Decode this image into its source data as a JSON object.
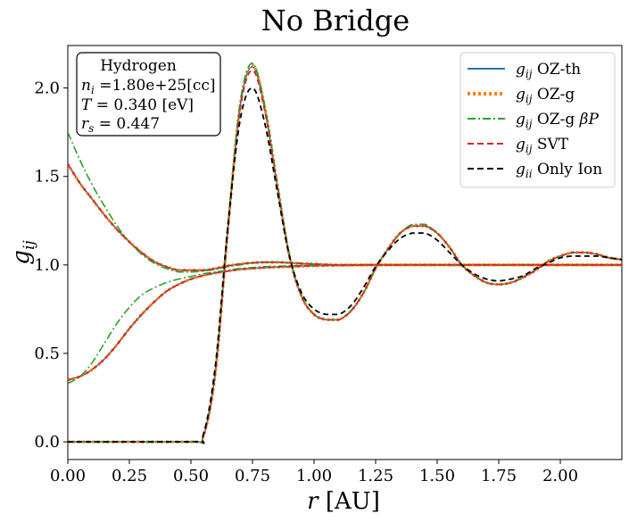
{
  "chart_data": {
    "type": "line",
    "title": "No Bridge",
    "xlabel": "r [AU]",
    "ylabel": "g_ij",
    "xlim": [
      0.0,
      2.25
    ],
    "ylim": [
      -0.1,
      2.24
    ],
    "xticks": [
      0.0,
      0.25,
      0.5,
      0.75,
      1.0,
      1.25,
      1.5,
      1.75,
      2.0
    ],
    "xtick_labels": [
      "0.00",
      "0.25",
      "0.50",
      "0.75",
      "1.00",
      "1.25",
      "1.50",
      "1.75",
      "2.00"
    ],
    "yticks": [
      0.0,
      0.5,
      1.0,
      1.5,
      2.0
    ],
    "ytick_labels": [
      "0.0",
      "0.5",
      "1.0",
      "1.5",
      "2.0"
    ],
    "legend_position": "top-right",
    "info_box": {
      "line1": "Hydrogen",
      "line2": "n_i =1.80e+25[cc]",
      "line3": "T = 0.340 [eV]",
      "line4": "r_s = 0.447"
    },
    "legend": [
      {
        "label": "g_ij OZ-th",
        "color": "#1f77b4",
        "dash": "solid"
      },
      {
        "label": "g_ij OZ-g",
        "color": "#ff7f0e",
        "dash": "dotted"
      },
      {
        "label": "g_ij OZ-g βP",
        "color": "#2ca02c",
        "dash": "dashdot"
      },
      {
        "label": "g_ij SVT",
        "color": "#d62728",
        "dash": "dashed"
      },
      {
        "label": "g_ii Only Ion",
        "color": "#000000",
        "dash": "dashed"
      }
    ],
    "series": [
      {
        "group": "ion-ion",
        "name": "g_ij OZ-th",
        "color": "#1f77b4",
        "dash": "solid",
        "x": [
          0.0,
          0.5,
          0.55,
          0.6,
          0.65,
          0.7,
          0.75,
          0.8,
          0.85,
          0.9,
          0.95,
          1.0,
          1.05,
          1.1,
          1.15,
          1.2,
          1.25,
          1.3,
          1.35,
          1.4,
          1.45,
          1.5,
          1.55,
          1.6,
          1.65,
          1.7,
          1.75,
          1.8,
          1.85,
          1.9,
          1.95,
          2.0,
          2.05,
          2.1,
          2.15,
          2.2,
          2.25
        ],
        "y": [
          0.0,
          0.0,
          0.03,
          0.4,
          1.2,
          1.9,
          2.12,
          1.88,
          1.45,
          1.05,
          0.82,
          0.72,
          0.69,
          0.69,
          0.74,
          0.84,
          0.98,
          1.09,
          1.18,
          1.22,
          1.22,
          1.18,
          1.1,
          1.0,
          0.94,
          0.9,
          0.89,
          0.9,
          0.93,
          0.97,
          1.02,
          1.05,
          1.07,
          1.07,
          1.06,
          1.04,
          1.03
        ]
      },
      {
        "group": "ion-ion",
        "name": "g_ij OZ-g",
        "color": "#ff7f0e",
        "dash": "dotted",
        "x": [
          0.0,
          0.5,
          0.55,
          0.6,
          0.65,
          0.7,
          0.75,
          0.8,
          0.85,
          0.9,
          0.95,
          1.0,
          1.05,
          1.1,
          1.15,
          1.2,
          1.25,
          1.3,
          1.35,
          1.4,
          1.45,
          1.5,
          1.55,
          1.6,
          1.65,
          1.7,
          1.75,
          1.8,
          1.85,
          1.9,
          1.95,
          2.0,
          2.05,
          2.1,
          2.15,
          2.2,
          2.25
        ],
        "y": [
          0.0,
          0.0,
          0.03,
          0.4,
          1.2,
          1.9,
          2.13,
          1.89,
          1.46,
          1.05,
          0.82,
          0.72,
          0.69,
          0.69,
          0.74,
          0.84,
          0.98,
          1.09,
          1.18,
          1.22,
          1.22,
          1.18,
          1.1,
          1.0,
          0.94,
          0.9,
          0.89,
          0.9,
          0.93,
          0.97,
          1.02,
          1.05,
          1.07,
          1.07,
          1.06,
          1.04,
          1.03
        ]
      },
      {
        "group": "ion-ion",
        "name": "g_ij OZ-g βP",
        "color": "#2ca02c",
        "dash": "dashdot",
        "x": [
          0.0,
          0.5,
          0.55,
          0.6,
          0.65,
          0.7,
          0.75,
          0.8,
          0.85,
          0.9,
          0.95,
          1.0,
          1.05,
          1.1,
          1.15,
          1.2,
          1.25,
          1.3,
          1.35,
          1.4,
          1.45,
          1.5,
          1.55,
          1.6,
          1.65,
          1.7,
          1.75,
          1.8,
          1.85,
          1.9,
          1.95,
          2.0,
          2.05,
          2.1,
          2.15,
          2.2,
          2.25
        ],
        "y": [
          0.0,
          0.0,
          0.03,
          0.41,
          1.22,
          1.92,
          2.14,
          1.9,
          1.47,
          1.06,
          0.82,
          0.72,
          0.69,
          0.69,
          0.74,
          0.84,
          0.98,
          1.09,
          1.18,
          1.23,
          1.23,
          1.18,
          1.1,
          1.0,
          0.94,
          0.9,
          0.89,
          0.9,
          0.93,
          0.97,
          1.02,
          1.05,
          1.07,
          1.07,
          1.06,
          1.04,
          1.03
        ]
      },
      {
        "group": "ion-ion",
        "name": "g_ij SVT",
        "color": "#d62728",
        "dash": "dashed",
        "x": [
          0.0,
          0.5,
          0.55,
          0.6,
          0.65,
          0.7,
          0.75,
          0.8,
          0.85,
          0.9,
          0.95,
          1.0,
          1.05,
          1.1,
          1.15,
          1.2,
          1.25,
          1.3,
          1.35,
          1.4,
          1.45,
          1.5,
          1.55,
          1.6,
          1.65,
          1.7,
          1.75,
          1.8,
          1.85,
          1.9,
          1.95,
          2.0,
          2.05,
          2.1,
          2.15,
          2.2,
          2.25
        ],
        "y": [
          0.0,
          0.0,
          0.03,
          0.4,
          1.19,
          1.88,
          2.1,
          1.87,
          1.45,
          1.05,
          0.82,
          0.72,
          0.69,
          0.69,
          0.74,
          0.84,
          0.98,
          1.09,
          1.18,
          1.22,
          1.22,
          1.18,
          1.1,
          1.0,
          0.94,
          0.9,
          0.89,
          0.9,
          0.93,
          0.97,
          1.02,
          1.05,
          1.07,
          1.07,
          1.06,
          1.04,
          1.03
        ]
      },
      {
        "group": "ion-ion",
        "name": "g_ii Only Ion",
        "color": "#000000",
        "dash": "dashed",
        "x": [
          0.0,
          0.5,
          0.55,
          0.6,
          0.65,
          0.7,
          0.75,
          0.8,
          0.85,
          0.9,
          0.95,
          1.0,
          1.05,
          1.1,
          1.15,
          1.2,
          1.25,
          1.3,
          1.35,
          1.4,
          1.45,
          1.5,
          1.55,
          1.6,
          1.65,
          1.7,
          1.75,
          1.8,
          1.85,
          1.9,
          1.95,
          2.0,
          2.05,
          2.1,
          2.15,
          2.2,
          2.25
        ],
        "y": [
          0.0,
          0.0,
          0.04,
          0.44,
          1.22,
          1.82,
          2.0,
          1.8,
          1.42,
          1.05,
          0.84,
          0.75,
          0.72,
          0.72,
          0.77,
          0.87,
          0.99,
          1.08,
          1.15,
          1.18,
          1.18,
          1.14,
          1.07,
          1.0,
          0.95,
          0.92,
          0.91,
          0.92,
          0.94,
          0.98,
          1.01,
          1.04,
          1.05,
          1.05,
          1.05,
          1.04,
          1.03
        ]
      },
      {
        "group": "electron-electron",
        "name": "g_ij OZ-th",
        "color": "#1f77b4",
        "dash": "solid",
        "x": [
          0.0,
          0.05,
          0.1,
          0.15,
          0.2,
          0.25,
          0.3,
          0.35,
          0.4,
          0.45,
          0.5,
          0.55,
          0.6,
          0.65,
          0.7,
          0.75,
          0.8,
          0.85,
          0.9,
          0.95,
          1.0,
          1.1,
          1.25,
          1.5,
          1.75,
          2.0,
          2.25
        ],
        "y": [
          1.57,
          1.46,
          1.37,
          1.28,
          1.2,
          1.13,
          1.07,
          1.02,
          0.99,
          0.97,
          0.97,
          0.97,
          0.98,
          0.995,
          1.005,
          1.012,
          1.015,
          1.015,
          1.012,
          1.008,
          1.005,
          1.0,
          1.0,
          1.0,
          1.0,
          1.0,
          1.0
        ]
      },
      {
        "group": "electron-electron",
        "name": "g_ij OZ-g",
        "color": "#ff7f0e",
        "dash": "dotted",
        "x": [
          0.0,
          0.05,
          0.1,
          0.15,
          0.2,
          0.25,
          0.3,
          0.35,
          0.4,
          0.45,
          0.5,
          0.55,
          0.6,
          0.65,
          0.7,
          0.75,
          0.8,
          0.85,
          0.9,
          0.95,
          1.0,
          1.1,
          1.25,
          1.5,
          1.75,
          2.0,
          2.25
        ],
        "y": [
          1.57,
          1.46,
          1.37,
          1.28,
          1.2,
          1.13,
          1.07,
          1.02,
          0.99,
          0.97,
          0.97,
          0.97,
          0.98,
          0.995,
          1.005,
          1.012,
          1.015,
          1.015,
          1.012,
          1.008,
          1.005,
          1.0,
          1.0,
          1.0,
          1.0,
          1.0,
          1.0
        ]
      },
      {
        "group": "electron-electron",
        "name": "g_ij OZ-g βP",
        "color": "#2ca02c",
        "dash": "dashdot",
        "x": [
          0.0,
          0.05,
          0.1,
          0.15,
          0.2,
          0.25,
          0.3,
          0.35,
          0.4,
          0.45,
          0.5,
          0.55,
          0.6,
          0.65,
          0.7,
          0.75,
          0.8,
          0.85,
          0.9,
          0.95,
          1.0,
          1.1,
          1.25,
          1.5,
          1.75,
          2.0,
          2.25
        ],
        "y": [
          1.75,
          1.59,
          1.45,
          1.33,
          1.22,
          1.13,
          1.06,
          1.01,
          0.98,
          0.96,
          0.96,
          0.965,
          0.975,
          0.99,
          1.0,
          1.01,
          1.015,
          1.015,
          1.012,
          1.008,
          1.005,
          1.0,
          1.0,
          1.0,
          1.0,
          1.0,
          1.0
        ]
      },
      {
        "group": "electron-electron",
        "name": "g_ij SVT",
        "color": "#d62728",
        "dash": "dashed",
        "x": [
          0.0,
          0.05,
          0.1,
          0.15,
          0.2,
          0.25,
          0.3,
          0.35,
          0.4,
          0.45,
          0.5,
          0.55,
          0.6,
          0.65,
          0.7,
          0.75,
          0.8,
          0.85,
          0.9,
          0.95,
          1.0,
          1.1,
          1.25,
          1.5,
          1.75,
          2.0,
          2.25
        ],
        "y": [
          1.57,
          1.46,
          1.37,
          1.28,
          1.2,
          1.13,
          1.07,
          1.02,
          0.99,
          0.97,
          0.97,
          0.97,
          0.98,
          0.995,
          1.005,
          1.012,
          1.015,
          1.015,
          1.012,
          1.008,
          1.005,
          1.0,
          1.0,
          1.0,
          1.0,
          1.0,
          1.0
        ]
      },
      {
        "group": "electron-ion",
        "name": "g_ij OZ-th",
        "color": "#1f77b4",
        "dash": "solid",
        "x": [
          0.0,
          0.05,
          0.1,
          0.15,
          0.2,
          0.25,
          0.3,
          0.35,
          0.4,
          0.45,
          0.5,
          0.55,
          0.6,
          0.65,
          0.7,
          0.75,
          0.8,
          0.9,
          1.0,
          1.25,
          1.5,
          1.75,
          2.0,
          2.25
        ],
        "y": [
          0.35,
          0.37,
          0.41,
          0.47,
          0.55,
          0.64,
          0.72,
          0.79,
          0.85,
          0.89,
          0.92,
          0.94,
          0.955,
          0.965,
          0.975,
          0.98,
          0.985,
          0.99,
          0.995,
          1.0,
          1.0,
          1.0,
          1.0,
          1.0
        ]
      },
      {
        "group": "electron-ion",
        "name": "g_ij OZ-g",
        "color": "#ff7f0e",
        "dash": "dotted",
        "x": [
          0.0,
          0.05,
          0.1,
          0.15,
          0.2,
          0.25,
          0.3,
          0.35,
          0.4,
          0.45,
          0.5,
          0.55,
          0.6,
          0.65,
          0.7,
          0.75,
          0.8,
          0.9,
          1.0,
          1.25,
          1.5,
          1.75,
          2.0,
          2.25
        ],
        "y": [
          0.35,
          0.37,
          0.41,
          0.47,
          0.55,
          0.64,
          0.72,
          0.79,
          0.85,
          0.89,
          0.92,
          0.94,
          0.955,
          0.965,
          0.975,
          0.98,
          0.985,
          0.99,
          0.995,
          1.0,
          1.0,
          1.0,
          1.0,
          1.0
        ]
      },
      {
        "group": "electron-ion",
        "name": "g_ij OZ-g βP",
        "color": "#2ca02c",
        "dash": "dashdot",
        "x": [
          0.0,
          0.05,
          0.1,
          0.15,
          0.2,
          0.25,
          0.3,
          0.35,
          0.4,
          0.45,
          0.5,
          0.55,
          0.6,
          0.65,
          0.7,
          0.75,
          0.8,
          0.9,
          1.0,
          1.25,
          1.5,
          1.75,
          2.0,
          2.25
        ],
        "y": [
          0.33,
          0.37,
          0.45,
          0.56,
          0.67,
          0.76,
          0.83,
          0.87,
          0.9,
          0.92,
          0.935,
          0.95,
          0.96,
          0.97,
          0.98,
          0.985,
          0.99,
          0.995,
          0.998,
          1.0,
          1.0,
          1.0,
          1.0,
          1.0
        ]
      },
      {
        "group": "electron-ion",
        "name": "g_ij SVT",
        "color": "#d62728",
        "dash": "dashed",
        "x": [
          0.0,
          0.05,
          0.1,
          0.15,
          0.2,
          0.25,
          0.3,
          0.35,
          0.4,
          0.45,
          0.5,
          0.55,
          0.6,
          0.65,
          0.7,
          0.75,
          0.8,
          0.9,
          1.0,
          1.25,
          1.5,
          1.75,
          2.0,
          2.25
        ],
        "y": [
          0.35,
          0.37,
          0.41,
          0.47,
          0.55,
          0.64,
          0.72,
          0.79,
          0.85,
          0.89,
          0.92,
          0.94,
          0.955,
          0.965,
          0.975,
          0.98,
          0.985,
          0.99,
          0.995,
          1.0,
          1.0,
          1.0,
          1.0,
          1.0
        ]
      }
    ]
  }
}
